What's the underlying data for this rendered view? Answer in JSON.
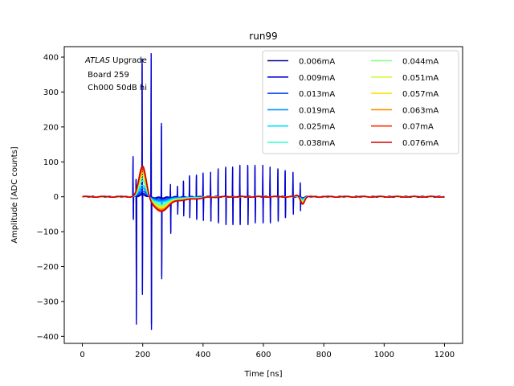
{
  "chart_data": {
    "type": "line",
    "title": "run99",
    "xlabel": "Time [ns]",
    "ylabel": "Amplitude [ADC counts]",
    "xlim": [
      -60,
      1260
    ],
    "ylim": [
      -420,
      430
    ],
    "xticks": [
      0,
      200,
      400,
      600,
      800,
      1000,
      1200
    ],
    "yticks": [
      -400,
      -300,
      -200,
      -100,
      0,
      100,
      200,
      300,
      400
    ],
    "legend_position": "upper-right",
    "annotation": {
      "italic": "ATLAS",
      "rest": " Upgrade",
      "line2": " Board 259",
      "line3": " Ch000 50dB hi"
    },
    "series": [
      {
        "name": "0.006mA",
        "color": "#00008f",
        "pulse_amp": 5,
        "spikes": true
      },
      {
        "name": "0.009mA",
        "color": "#0000d5",
        "pulse_amp": 10,
        "spikes": true
      },
      {
        "name": "0.013mA",
        "color": "#0040ff",
        "pulse_amp": 17,
        "spikes": false
      },
      {
        "name": "0.019mA",
        "color": "#0090ff",
        "pulse_amp": 26,
        "spikes": false
      },
      {
        "name": "0.025mA",
        "color": "#00e0ff",
        "pulse_amp": 34,
        "spikes": false
      },
      {
        "name": "0.038mA",
        "color": "#30ffcf",
        "pulse_amp": 47,
        "spikes": false
      },
      {
        "name": "0.044mA",
        "color": "#80ff80",
        "pulse_amp": 55,
        "spikes": false
      },
      {
        "name": "0.051mA",
        "color": "#cfff30",
        "pulse_amp": 63,
        "spikes": false
      },
      {
        "name": "0.057mA",
        "color": "#ffdf00",
        "pulse_amp": 71,
        "spikes": false
      },
      {
        "name": "0.063mA",
        "color": "#ff9000",
        "pulse_amp": 78,
        "spikes": false
      },
      {
        "name": "0.07mA",
        "color": "#ff3000",
        "pulse_amp": 85,
        "spikes": false
      },
      {
        "name": "0.076mA",
        "color": "#d00000",
        "pulse_amp": 91,
        "spikes": false
      }
    ],
    "spike_events": [
      {
        "t": 168,
        "up": 115,
        "down": -65
      },
      {
        "t": 178,
        "up": 50,
        "down": -365
      },
      {
        "t": 198,
        "up": 395,
        "down": -280
      },
      {
        "t": 228,
        "up": 410,
        "down": -380
      },
      {
        "t": 262,
        "up": 210,
        "down": -235
      },
      {
        "t": 292,
        "up": 35,
        "down": -105
      },
      {
        "t": 315,
        "up": 30,
        "down": -50
      },
      {
        "t": 335,
        "up": 45,
        "down": -55
      },
      {
        "t": 355,
        "up": 60,
        "down": -60
      },
      {
        "t": 378,
        "up": 62,
        "down": -65
      },
      {
        "t": 400,
        "up": 68,
        "down": -68
      },
      {
        "t": 425,
        "up": 70,
        "down": -70
      },
      {
        "t": 450,
        "up": 80,
        "down": -75
      },
      {
        "t": 475,
        "up": 85,
        "down": -80
      },
      {
        "t": 498,
        "up": 85,
        "down": -80
      },
      {
        "t": 522,
        "up": 90,
        "down": -80
      },
      {
        "t": 548,
        "up": 90,
        "down": -80
      },
      {
        "t": 572,
        "up": 90,
        "down": -75
      },
      {
        "t": 598,
        "up": 90,
        "down": -75
      },
      {
        "t": 622,
        "up": 85,
        "down": -75
      },
      {
        "t": 648,
        "up": 80,
        "down": -70
      },
      {
        "t": 672,
        "up": 75,
        "down": -60
      },
      {
        "t": 698,
        "up": 70,
        "down": -50
      },
      {
        "t": 722,
        "up": 40,
        "down": -40
      }
    ]
  }
}
